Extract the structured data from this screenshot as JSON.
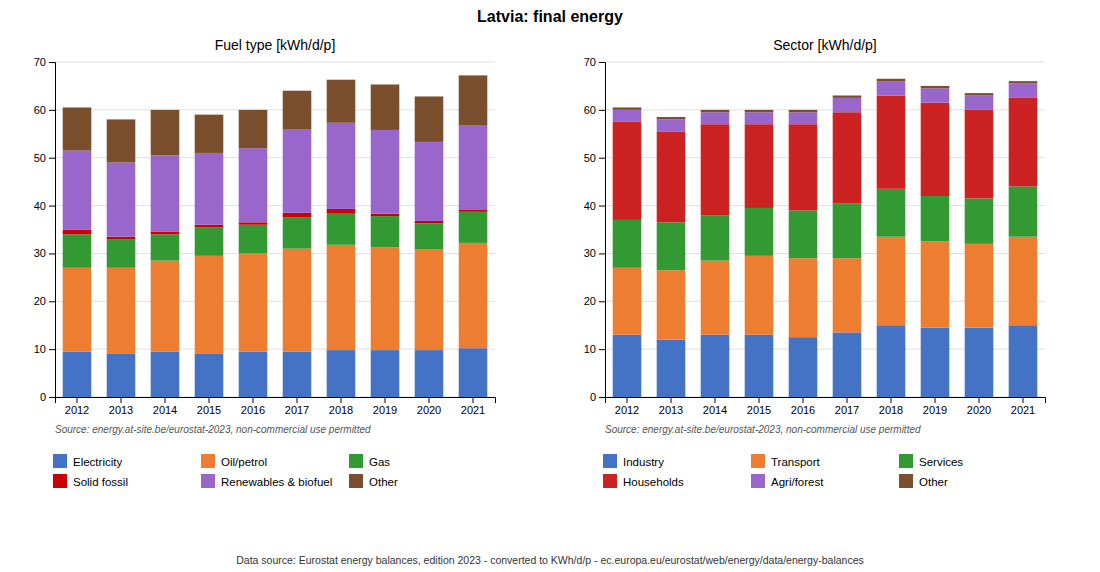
{
  "title": "Latvia: final energy",
  "annotations": [
    "Data source: Eurostat energy balances, edition 2023 - converted to KWh/d/p - ec.europa.eu/eurostat/web/energy/data/energy-balances"
  ],
  "chart_data": [
    {
      "type": "bar",
      "stacked": true,
      "grid": true,
      "legend": "bottom",
      "title": "Fuel type [kWh/d/p]",
      "annotations": [
        "Source: energy.at-site.be/eurostat-2023, non-commercial use permitted"
      ],
      "categories": [
        "2012",
        "2013",
        "2014",
        "2015",
        "2016",
        "2017",
        "2018",
        "2019",
        "2020",
        "2021"
      ],
      "ylim": [
        0,
        70
      ],
      "yticks": [
        0,
        10,
        20,
        30,
        40,
        50,
        60,
        70
      ],
      "series": [
        {
          "name": "Electricity",
          "color": "#4472c4",
          "values": [
            9.5,
            9.0,
            9.5,
            9.0,
            9.5,
            9.5,
            9.8,
            9.8,
            9.8,
            10.2
          ]
        },
        {
          "name": "Oil/petrol",
          "color": "#ed7d31",
          "values": [
            17.5,
            18.0,
            19.0,
            20.5,
            20.5,
            21.5,
            22.0,
            21.5,
            21.0,
            22.0
          ]
        },
        {
          "name": "Gas",
          "color": "#339933",
          "values": [
            7.0,
            6.0,
            5.5,
            6.0,
            6.0,
            6.5,
            6.5,
            6.5,
            5.5,
            6.5
          ]
        },
        {
          "name": "Solid fossil",
          "color": "#cc0000",
          "values": [
            1.0,
            0.5,
            0.5,
            0.5,
            0.5,
            1.0,
            1.0,
            0.5,
            0.5,
            0.5
          ]
        },
        {
          "name": "Renewables & biofuel",
          "color": "#9966cc",
          "values": [
            16.5,
            15.5,
            16.0,
            15.0,
            15.5,
            17.5,
            18.0,
            17.5,
            16.5,
            17.5
          ]
        },
        {
          "name": "Other",
          "color": "#7b4f2e",
          "values": [
            9.0,
            9.0,
            9.5,
            8.0,
            8.0,
            8.0,
            9.0,
            9.5,
            9.5,
            10.5
          ]
        }
      ]
    },
    {
      "type": "bar",
      "stacked": true,
      "grid": true,
      "legend": "bottom",
      "title": "Sector [kWh/d/p]",
      "annotations": [
        "Source: energy.at-site.be/eurostat-2023, non-commercial use permitted"
      ],
      "categories": [
        "2012",
        "2013",
        "2014",
        "2015",
        "2016",
        "2017",
        "2018",
        "2019",
        "2020",
        "2021"
      ],
      "ylim": [
        0,
        70
      ],
      "yticks": [
        0,
        10,
        20,
        30,
        40,
        50,
        60,
        70
      ],
      "series": [
        {
          "name": "Industry",
          "color": "#4472c4",
          "values": [
            13.0,
            12.0,
            13.0,
            13.0,
            12.5,
            13.5,
            15.0,
            14.5,
            14.5,
            15.0
          ]
        },
        {
          "name": "Transport",
          "color": "#ed7d31",
          "values": [
            14.0,
            14.5,
            15.5,
            16.5,
            16.5,
            15.5,
            18.5,
            18.0,
            17.5,
            18.5
          ]
        },
        {
          "name": "Services",
          "color": "#339933",
          "values": [
            10.0,
            10.0,
            9.5,
            10.0,
            10.0,
            11.5,
            10.0,
            9.5,
            9.5,
            10.5
          ]
        },
        {
          "name": "Households",
          "color": "#cc2222",
          "values": [
            20.5,
            19.0,
            19.0,
            17.5,
            18.0,
            19.0,
            19.5,
            19.5,
            18.5,
            18.5
          ]
        },
        {
          "name": "Agri/forest",
          "color": "#9966cc",
          "values": [
            2.5,
            2.5,
            2.5,
            2.5,
            2.5,
            3.0,
            3.0,
            3.0,
            3.0,
            3.0
          ]
        },
        {
          "name": "Other",
          "color": "#7b4f2e",
          "values": [
            0.5,
            0.5,
            0.5,
            0.5,
            0.5,
            0.5,
            0.5,
            0.5,
            0.5,
            0.5
          ]
        }
      ]
    }
  ]
}
